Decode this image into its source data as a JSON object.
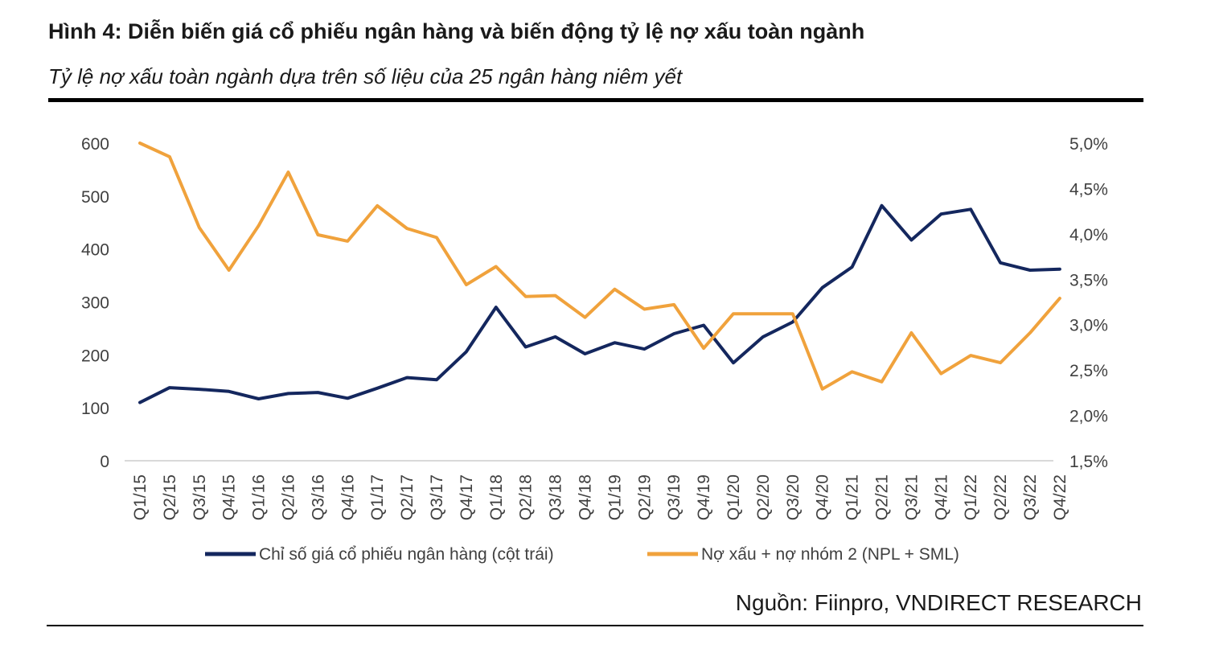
{
  "figure": {
    "title": "Hình 4: Diễn biến giá cổ phiếu ngân hàng và biến động tỷ lệ nợ xấu toàn ngành",
    "subtitle": "Tỷ lệ nợ xấu toàn ngành dựa trên số liệu của 25 ngân hàng niêm yết",
    "source": "Nguồn: Fiinpro, VNDIRECT RESEARCH"
  },
  "chart_data": {
    "type": "line",
    "categories": [
      "Q1/15",
      "Q2/15",
      "Q3/15",
      "Q4/15",
      "Q1/16",
      "Q2/16",
      "Q3/16",
      "Q4/16",
      "Q1/17",
      "Q2/17",
      "Q3/17",
      "Q4/17",
      "Q1/18",
      "Q2/18",
      "Q3/18",
      "Q4/18",
      "Q1/19",
      "Q2/19",
      "Q3/19",
      "Q4/19",
      "Q1/20",
      "Q2/20",
      "Q3/20",
      "Q4/20",
      "Q1/21",
      "Q2/21",
      "Q3/21",
      "Q4/21",
      "Q1/22",
      "Q2/22",
      "Q3/22",
      "Q4/22"
    ],
    "series": [
      {
        "name": "Chỉ số giá cổ phiếu ngân hàng (cột trái)",
        "axis": "left",
        "color": "#14275e",
        "values": [
          110,
          138,
          135,
          131,
          117,
          127,
          129,
          118,
          137,
          157,
          153,
          206,
          290,
          215,
          234,
          202,
          223,
          211,
          240,
          256,
          185,
          234,
          262,
          327,
          366,
          482,
          417,
          466,
          475,
          374,
          360,
          362
        ]
      },
      {
        "name": "Nợ xấu + nợ nhóm 2 (NPL + SML)",
        "axis": "right",
        "color": "#f0a23c",
        "values": [
          5.0,
          4.85,
          4.07,
          3.6,
          4.09,
          4.68,
          3.99,
          3.92,
          4.31,
          4.06,
          3.96,
          3.44,
          3.64,
          3.31,
          3.32,
          3.08,
          3.39,
          3.17,
          3.22,
          2.74,
          3.12,
          3.12,
          3.12,
          2.29,
          2.48,
          2.37,
          2.91,
          2.46,
          2.66,
          2.58,
          2.91,
          3.29
        ]
      }
    ],
    "y_left": {
      "min": 0,
      "max": 600,
      "ticks": [
        "0",
        "100",
        "200",
        "300",
        "400",
        "500",
        "600"
      ]
    },
    "y_right": {
      "min": 1.5,
      "max": 5.0,
      "ticks": [
        "1,5%",
        "2,0%",
        "2,5%",
        "3,0%",
        "3,5%",
        "4,0%",
        "4,5%",
        "5,0%"
      ]
    },
    "grid": false,
    "legend_position": "bottom"
  }
}
